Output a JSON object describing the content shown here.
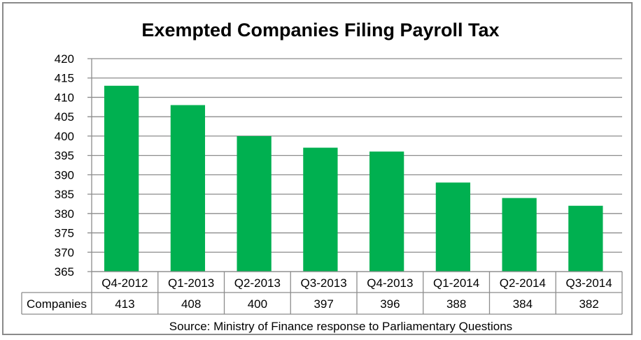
{
  "chart_data": {
    "type": "bar",
    "title": "Exempted Companies Filing Payroll Tax",
    "categories": [
      "Q4-2012",
      "Q1-2013",
      "Q2-2013",
      "Q3-2013",
      "Q4-2013",
      "Q1-2014",
      "Q2-2014",
      "Q3-2014"
    ],
    "series": [
      {
        "name": "Companies",
        "values": [
          413,
          408,
          400,
          397,
          396,
          388,
          384,
          382
        ]
      }
    ],
    "ylim": [
      365,
      420
    ],
    "yticks": [
      365,
      370,
      375,
      380,
      385,
      390,
      395,
      400,
      405,
      410,
      415,
      420
    ],
    "xlabel": "",
    "ylabel": "",
    "grid": true,
    "legend": "data-table below chart",
    "source": "Source:  Ministry of Finance response to Parliamentary Questions",
    "bar_color": "#00B050"
  }
}
